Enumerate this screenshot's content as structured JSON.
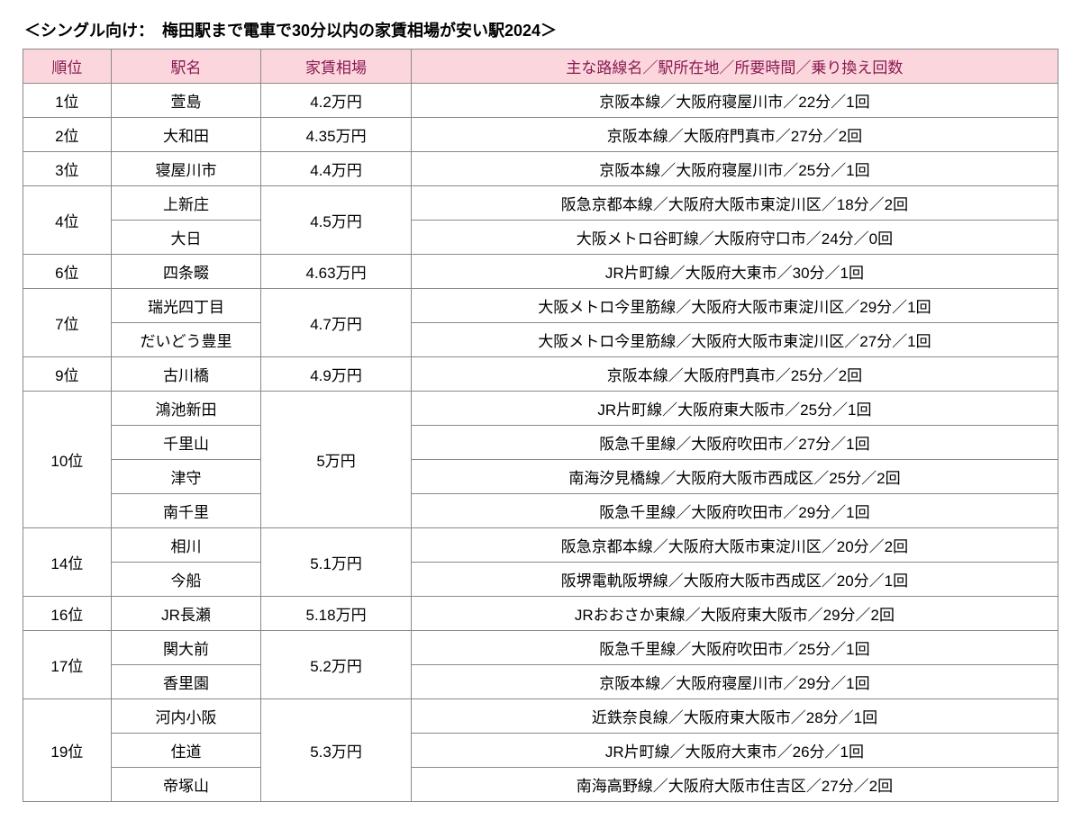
{
  "title": "＜シングル向け：　梅田駅まで電車で30分以内の家賃相場が安い駅2024＞",
  "colors": {
    "header_bg": "#fbd6dc",
    "header_text": "#8b1a52",
    "border": "#8a8a8a"
  },
  "columns": [
    {
      "key": "rank",
      "label": "順位",
      "class": "col-rank"
    },
    {
      "key": "station",
      "label": "駅名",
      "class": "col-station"
    },
    {
      "key": "rent",
      "label": "家賃相場",
      "class": "col-rent"
    },
    {
      "key": "detail",
      "label": "主な路線名／駅所在地／所要時間／乗り換え回数",
      "class": "col-detail"
    }
  ],
  "groups": [
    {
      "rank": "1位",
      "rent": "4.2万円",
      "rows": [
        {
          "station": "萱島",
          "detail": "京阪本線／大阪府寝屋川市／22分／1回"
        }
      ]
    },
    {
      "rank": "2位",
      "rent": "4.35万円",
      "rows": [
        {
          "station": "大和田",
          "detail": "京阪本線／大阪府門真市／27分／2回"
        }
      ]
    },
    {
      "rank": "3位",
      "rent": "4.4万円",
      "rows": [
        {
          "station": "寝屋川市",
          "detail": "京阪本線／大阪府寝屋川市／25分／1回"
        }
      ]
    },
    {
      "rank": "4位",
      "rent": "4.5万円",
      "rows": [
        {
          "station": "上新庄",
          "detail": "阪急京都本線／大阪府大阪市東淀川区／18分／2回"
        },
        {
          "station": "大日",
          "detail": "大阪メトロ谷町線／大阪府守口市／24分／0回"
        }
      ]
    },
    {
      "rank": "6位",
      "rent": "4.63万円",
      "rows": [
        {
          "station": "四条畷",
          "detail": "JR片町線／大阪府大東市／30分／1回"
        }
      ]
    },
    {
      "rank": "7位",
      "rent": "4.7万円",
      "rows": [
        {
          "station": "瑞光四丁目",
          "detail": "大阪メトロ今里筋線／大阪府大阪市東淀川区／29分／1回"
        },
        {
          "station": "だいどう豊里",
          "detail": "大阪メトロ今里筋線／大阪府大阪市東淀川区／27分／1回"
        }
      ]
    },
    {
      "rank": "9位",
      "rent": "4.9万円",
      "rows": [
        {
          "station": "古川橋",
          "detail": "京阪本線／大阪府門真市／25分／2回"
        }
      ]
    },
    {
      "rank": "10位",
      "rent": "5万円",
      "rows": [
        {
          "station": "鴻池新田",
          "detail": "JR片町線／大阪府東大阪市／25分／1回"
        },
        {
          "station": "千里山",
          "detail": "阪急千里線／大阪府吹田市／27分／1回"
        },
        {
          "station": "津守",
          "detail": "南海汐見橋線／大阪府大阪市西成区／25分／2回"
        },
        {
          "station": "南千里",
          "detail": "阪急千里線／大阪府吹田市／29分／1回"
        }
      ]
    },
    {
      "rank": "14位",
      "rent": "5.1万円",
      "rows": [
        {
          "station": "相川",
          "detail": "阪急京都本線／大阪府大阪市東淀川区／20分／2回"
        },
        {
          "station": "今船",
          "detail": "阪堺電軌阪堺線／大阪府大阪市西成区／20分／1回"
        }
      ]
    },
    {
      "rank": "16位",
      "rent": "5.18万円",
      "rows": [
        {
          "station": "JR長瀬",
          "detail": "JRおおさか東線／大阪府東大阪市／29分／2回"
        }
      ]
    },
    {
      "rank": "17位",
      "rent": "5.2万円",
      "rows": [
        {
          "station": "関大前",
          "detail": "阪急千里線／大阪府吹田市／25分／1回"
        },
        {
          "station": "香里園",
          "detail": "京阪本線／大阪府寝屋川市／29分／1回"
        }
      ]
    },
    {
      "rank": "19位",
      "rent": "5.3万円",
      "rows": [
        {
          "station": "河内小阪",
          "detail": "近鉄奈良線／大阪府東大阪市／28分／1回"
        },
        {
          "station": "住道",
          "detail": "JR片町線／大阪府大東市／26分／1回"
        },
        {
          "station": "帝塚山",
          "detail": "南海高野線／大阪府大阪市住吉区／27分／2回"
        }
      ]
    }
  ]
}
